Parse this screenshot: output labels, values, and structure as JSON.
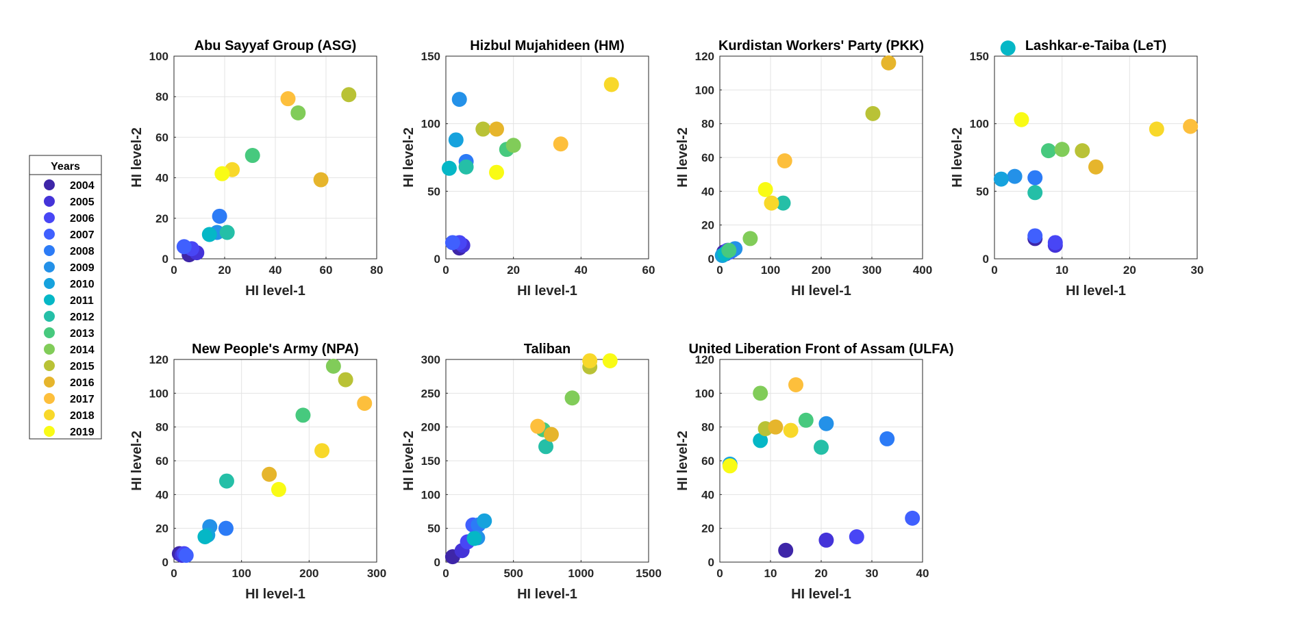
{
  "legend": {
    "title": "Years",
    "years": [
      "2004",
      "2005",
      "2006",
      "2007",
      "2008",
      "2009",
      "2010",
      "2011",
      "2012",
      "2013",
      "2014",
      "2015",
      "2016",
      "2017",
      "2018",
      "2019"
    ],
    "colors": [
      "#3e26a8",
      "#4433d8",
      "#4846f5",
      "#4060fe",
      "#2c7bf6",
      "#2491e8",
      "#16a2dd",
      "#05b7c6",
      "#25bfa7",
      "#47c97e",
      "#81cc59",
      "#b9c236",
      "#e6b52c",
      "#fdbf3c",
      "#f8d82a",
      "#f9fb15"
    ]
  },
  "chart_data": [
    {
      "type": "scatter",
      "title": "Abu Sayyaf Group (ASG)",
      "xlabel": "HI level-1",
      "ylabel": "HI level-2",
      "xlim": [
        0,
        80
      ],
      "ylim": [
        0,
        100
      ],
      "xticks": [
        0,
        20,
        40,
        60,
        80
      ],
      "yticks": [
        0,
        20,
        40,
        60,
        80,
        100
      ],
      "grid": true,
      "points": [
        {
          "year": "2004",
          "x": 6,
          "y": 2
        },
        {
          "year": "2005",
          "x": 9,
          "y": 3
        },
        {
          "year": "2006",
          "x": 7,
          "y": 5
        },
        {
          "year": "2007",
          "x": 4,
          "y": 6
        },
        {
          "year": "2008",
          "x": 18,
          "y": 21
        },
        {
          "year": "2009",
          "x": 17,
          "y": 13
        },
        {
          "year": "2011",
          "x": 14,
          "y": 12
        },
        {
          "year": "2012",
          "x": 21,
          "y": 13
        },
        {
          "year": "2013",
          "x": 31,
          "y": 51
        },
        {
          "year": "2014",
          "x": 49,
          "y": 72
        },
        {
          "year": "2015",
          "x": 69,
          "y": 81
        },
        {
          "year": "2016",
          "x": 58,
          "y": 39
        },
        {
          "year": "2017",
          "x": 45,
          "y": 79
        },
        {
          "year": "2018",
          "x": 23,
          "y": 44
        },
        {
          "year": "2019",
          "x": 19,
          "y": 42
        }
      ]
    },
    {
      "type": "scatter",
      "title": "Hizbul Mujahideen (HM)",
      "xlabel": "HI level-1",
      "ylabel": "HI level-2",
      "xlim": [
        0,
        60
      ],
      "ylim": [
        0,
        150
      ],
      "xticks": [
        0,
        20,
        40,
        60
      ],
      "yticks": [
        0,
        50,
        100,
        150
      ],
      "grid": true,
      "points": [
        {
          "year": "2004",
          "x": 4,
          "y": 8
        },
        {
          "year": "2005",
          "x": 5,
          "y": 10
        },
        {
          "year": "2006",
          "x": 4,
          "y": 12
        },
        {
          "year": "2007",
          "x": 2,
          "y": 12
        },
        {
          "year": "2008",
          "x": 6,
          "y": 72
        },
        {
          "year": "2009",
          "x": 4,
          "y": 118
        },
        {
          "year": "2010",
          "x": 3,
          "y": 88
        },
        {
          "year": "2011",
          "x": 1,
          "y": 67
        },
        {
          "year": "2012",
          "x": 6,
          "y": 68
        },
        {
          "year": "2013",
          "x": 18,
          "y": 81
        },
        {
          "year": "2014",
          "x": 20,
          "y": 84
        },
        {
          "year": "2015",
          "x": 11,
          "y": 96
        },
        {
          "year": "2016",
          "x": 15,
          "y": 96
        },
        {
          "year": "2017",
          "x": 34,
          "y": 85
        },
        {
          "year": "2018",
          "x": 49,
          "y": 129
        },
        {
          "year": "2019",
          "x": 15,
          "y": 64
        }
      ]
    },
    {
      "type": "scatter",
      "title": "Kurdistan Workers' Party (PKK)",
      "xlabel": "HI level-1",
      "ylabel": "HI level-2",
      "xlim": [
        0,
        400
      ],
      "ylim": [
        0,
        120
      ],
      "xticks": [
        0,
        100,
        200,
        300,
        400
      ],
      "yticks": [
        0,
        20,
        40,
        60,
        80,
        100,
        120
      ],
      "grid": true,
      "points": [
        {
          "year": "2004",
          "x": 8,
          "y": 4
        },
        {
          "year": "2005",
          "x": 12,
          "y": 3
        },
        {
          "year": "2006",
          "x": 15,
          "y": 5
        },
        {
          "year": "2007",
          "x": 20,
          "y": 4
        },
        {
          "year": "2008",
          "x": 25,
          "y": 5
        },
        {
          "year": "2009",
          "x": 30,
          "y": 6
        },
        {
          "year": "2010",
          "x": 5,
          "y": 2
        },
        {
          "year": "2011",
          "x": 10,
          "y": 3
        },
        {
          "year": "2012",
          "x": 125,
          "y": 33
        },
        {
          "year": "2013",
          "x": 18,
          "y": 5
        },
        {
          "year": "2014",
          "x": 60,
          "y": 12
        },
        {
          "year": "2015",
          "x": 302,
          "y": 86
        },
        {
          "year": "2016",
          "x": 333,
          "y": 116
        },
        {
          "year": "2017",
          "x": 128,
          "y": 58
        },
        {
          "year": "2018",
          "x": 102,
          "y": 33
        },
        {
          "year": "2019",
          "x": 90,
          "y": 41
        }
      ]
    },
    {
      "type": "scatter",
      "title": "Lashkar-e-Taiba (LeT)",
      "xlabel": "HI level-1",
      "ylabel": "HI level-2",
      "xlim": [
        0,
        30
      ],
      "ylim": [
        0,
        150
      ],
      "xticks": [
        0,
        10,
        20,
        30
      ],
      "yticks": [
        0,
        50,
        100,
        150
      ],
      "grid": true,
      "points": [
        {
          "year": "2004",
          "x": 6,
          "y": 15
        },
        {
          "year": "2005",
          "x": 9,
          "y": 10
        },
        {
          "year": "2006",
          "x": 9,
          "y": 12
        },
        {
          "year": "2007",
          "x": 6,
          "y": 17
        },
        {
          "year": "2008",
          "x": 6,
          "y": 60
        },
        {
          "year": "2009",
          "x": 3,
          "y": 61
        },
        {
          "year": "2010",
          "x": 1,
          "y": 59
        },
        {
          "year": "2011",
          "x": 2,
          "y": 156
        },
        {
          "year": "2012",
          "x": 6,
          "y": 49
        },
        {
          "year": "2013",
          "x": 8,
          "y": 80
        },
        {
          "year": "2014",
          "x": 10,
          "y": 81
        },
        {
          "year": "2015",
          "x": 13,
          "y": 80
        },
        {
          "year": "2016",
          "x": 15,
          "y": 68
        },
        {
          "year": "2017",
          "x": 29,
          "y": 98
        },
        {
          "year": "2018",
          "x": 24,
          "y": 96
        },
        {
          "year": "2019",
          "x": 4,
          "y": 103
        }
      ]
    },
    {
      "type": "scatter",
      "title": "New People's Army (NPA)",
      "xlabel": "HI level-1",
      "ylabel": "HI level-2",
      "xlim": [
        0,
        300
      ],
      "ylim": [
        0,
        120
      ],
      "xticks": [
        0,
        100,
        200,
        300
      ],
      "yticks": [
        0,
        20,
        40,
        60,
        80,
        100,
        120
      ],
      "grid": true,
      "points": [
        {
          "year": "2004",
          "x": 8,
          "y": 5
        },
        {
          "year": "2005",
          "x": 12,
          "y": 4
        },
        {
          "year": "2006",
          "x": 15,
          "y": 5
        },
        {
          "year": "2007",
          "x": 18,
          "y": 4
        },
        {
          "year": "2008",
          "x": 77,
          "y": 20
        },
        {
          "year": "2009",
          "x": 53,
          "y": 21
        },
        {
          "year": "2010",
          "x": 50,
          "y": 16
        },
        {
          "year": "2011",
          "x": 46,
          "y": 15
        },
        {
          "year": "2012",
          "x": 78,
          "y": 48
        },
        {
          "year": "2013",
          "x": 191,
          "y": 87
        },
        {
          "year": "2014",
          "x": 236,
          "y": 116
        },
        {
          "year": "2015",
          "x": 254,
          "y": 108
        },
        {
          "year": "2016",
          "x": 141,
          "y": 52
        },
        {
          "year": "2017",
          "x": 282,
          "y": 94
        },
        {
          "year": "2018",
          "x": 219,
          "y": 66
        },
        {
          "year": "2019",
          "x": 155,
          "y": 43
        }
      ]
    },
    {
      "type": "scatter",
      "title": "Taliban",
      "xlabel": "HI level-1",
      "ylabel": "HI level-2",
      "xlim": [
        0,
        1500
      ],
      "ylim": [
        0,
        300
      ],
      "xticks": [
        0,
        500,
        1000,
        1500
      ],
      "yticks": [
        0,
        50,
        100,
        150,
        200,
        250,
        300
      ],
      "grid": true,
      "points": [
        {
          "year": "2004",
          "x": 50,
          "y": 8
        },
        {
          "year": "2005",
          "x": 120,
          "y": 17
        },
        {
          "year": "2006",
          "x": 160,
          "y": 30
        },
        {
          "year": "2007",
          "x": 200,
          "y": 55
        },
        {
          "year": "2008",
          "x": 240,
          "y": 55
        },
        {
          "year": "2009",
          "x": 235,
          "y": 36
        },
        {
          "year": "2010",
          "x": 285,
          "y": 61
        },
        {
          "year": "2011",
          "x": 210,
          "y": 35
        },
        {
          "year": "2012",
          "x": 740,
          "y": 171
        },
        {
          "year": "2013",
          "x": 720,
          "y": 196
        },
        {
          "year": "2014",
          "x": 935,
          "y": 243
        },
        {
          "year": "2015",
          "x": 1065,
          "y": 289
        },
        {
          "year": "2016",
          "x": 780,
          "y": 189
        },
        {
          "year": "2017",
          "x": 680,
          "y": 201
        },
        {
          "year": "2018",
          "x": 1065,
          "y": 298
        },
        {
          "year": "2019",
          "x": 1215,
          "y": 298
        }
      ]
    },
    {
      "type": "scatter",
      "title": "United Liberation Front of Assam (ULFA)",
      "xlabel": "HI level-1",
      "ylabel": "HI level-2",
      "xlim": [
        0,
        40
      ],
      "ylim": [
        0,
        120
      ],
      "xticks": [
        0,
        10,
        20,
        30,
        40
      ],
      "yticks": [
        0,
        20,
        40,
        60,
        80,
        100,
        120
      ],
      "grid": true,
      "points": [
        {
          "year": "2004",
          "x": 13,
          "y": 7
        },
        {
          "year": "2005",
          "x": 21,
          "y": 13
        },
        {
          "year": "2006",
          "x": 27,
          "y": 15
        },
        {
          "year": "2007",
          "x": 38,
          "y": 26
        },
        {
          "year": "2008",
          "x": 33,
          "y": 73
        },
        {
          "year": "2009",
          "x": 21,
          "y": 82
        },
        {
          "year": "2010",
          "x": 2,
          "y": 58
        },
        {
          "year": "2011",
          "x": 8,
          "y": 72
        },
        {
          "year": "2012",
          "x": 20,
          "y": 68
        },
        {
          "year": "2013",
          "x": 17,
          "y": 84
        },
        {
          "year": "2014",
          "x": 8,
          "y": 100
        },
        {
          "year": "2015",
          "x": 9,
          "y": 79
        },
        {
          "year": "2016",
          "x": 11,
          "y": 80
        },
        {
          "year": "2017",
          "x": 15,
          "y": 105
        },
        {
          "year": "2018",
          "x": 14,
          "y": 78
        },
        {
          "year": "2019",
          "x": 2,
          "y": 57
        }
      ]
    }
  ]
}
